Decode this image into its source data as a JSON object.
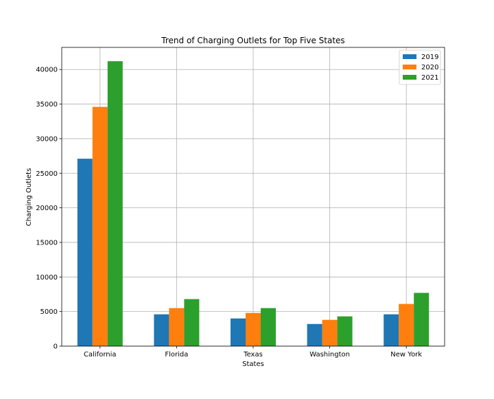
{
  "chart_data": {
    "type": "bar",
    "title": "Trend of Charging Outlets for Top Five States",
    "xlabel": "States",
    "ylabel": "Charging Outlets",
    "categories": [
      "California",
      "Florida",
      "Texas",
      "Washington",
      "New York"
    ],
    "series": [
      {
        "name": "2019",
        "color": "#1f77b4",
        "values": [
          27100,
          4600,
          4000,
          3200,
          4600
        ]
      },
      {
        "name": "2020",
        "color": "#ff7f0e",
        "values": [
          34600,
          5500,
          4800,
          3800,
          6100
        ]
      },
      {
        "name": "2021",
        "color": "#2ca02c",
        "values": [
          41200,
          6800,
          5500,
          4300,
          7700
        ]
      }
    ],
    "ylim": [
      0,
      43200
    ],
    "yticks": [
      0,
      5000,
      10000,
      15000,
      20000,
      25000,
      30000,
      35000,
      40000
    ],
    "grid": true,
    "legend_position": "top-right"
  }
}
